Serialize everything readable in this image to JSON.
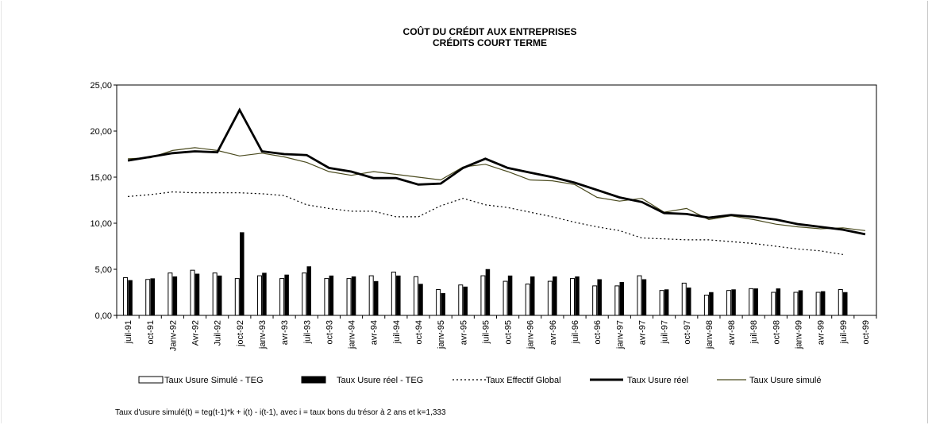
{
  "chart_data": {
    "type": "bar",
    "title": "COÛT DU CRÉDIT AUX ENTREPRISES",
    "subtitle": "CRÉDITS COURT TERME",
    "ylim": [
      0,
      25
    ],
    "yticks": [
      "0,00",
      "5,00",
      "10,00",
      "15,00",
      "20,00",
      "25,00"
    ],
    "yticks_values": [
      0,
      5,
      10,
      15,
      20,
      25
    ],
    "categories": [
      "juil-91",
      "oct-91",
      "Janv-92",
      "Avr-92",
      "Juil-92",
      "joct-92",
      "janv-93",
      "avr-93",
      "juil-93",
      "oct-93",
      "janv-94",
      "avr-94",
      "juil-94",
      "oct-94",
      "janv-95",
      "avr-95",
      "juil-95",
      "oct-95",
      "janv-96",
      "avr-96",
      "juil-96",
      "oct-96",
      "janv-97",
      "avr-97",
      "juil-97",
      "oct-97",
      "janv-98",
      "avr-98",
      "juil-98",
      "oct-98",
      "janv-99",
      "avr-99",
      "juil-99",
      "oct-99"
    ],
    "series": [
      {
        "name": "Taux Usure Simulé - TEG",
        "kind": "bar",
        "color": "#ffffff",
        "values": [
          4.1,
          3.9,
          4.6,
          4.9,
          4.6,
          4.0,
          4.3,
          4.0,
          4.6,
          4.0,
          4.0,
          4.3,
          4.7,
          4.2,
          2.8,
          3.3,
          4.3,
          3.7,
          3.4,
          3.7,
          4.0,
          3.2,
          3.2,
          4.3,
          2.7,
          3.5,
          2.2,
          2.7,
          2.9,
          2.5,
          2.5,
          2.5,
          2.8,
          null
        ]
      },
      {
        "name": "Taux Usure réel - TEG",
        "kind": "bar",
        "color": "#000000",
        "values": [
          3.8,
          4.0,
          4.2,
          4.5,
          4.3,
          9.0,
          4.6,
          4.4,
          5.3,
          4.3,
          4.2,
          3.7,
          4.3,
          3.4,
          2.4,
          3.1,
          5.0,
          4.3,
          4.2,
          4.2,
          4.2,
          3.9,
          3.6,
          3.9,
          2.8,
          3.0,
          2.5,
          2.8,
          2.9,
          2.9,
          2.7,
          2.6,
          2.5,
          null
        ]
      },
      {
        "name": "Taux Effectif Global",
        "kind": "line",
        "color": "#000000",
        "dash": "dotted",
        "values": [
          12.9,
          13.1,
          13.4,
          13.3,
          13.3,
          13.3,
          13.2,
          13.0,
          12.0,
          11.6,
          11.3,
          11.3,
          10.7,
          10.7,
          11.9,
          12.7,
          12.0,
          11.7,
          11.2,
          10.7,
          10.1,
          9.6,
          9.2,
          8.4,
          8.3,
          8.2,
          8.2,
          8.0,
          7.8,
          7.5,
          7.2,
          7.0,
          6.6,
          null
        ]
      },
      {
        "name": "Taux Usure réel",
        "kind": "line",
        "color": "#000000",
        "values": [
          16.8,
          17.2,
          17.6,
          17.8,
          17.7,
          22.3,
          17.8,
          17.5,
          17.4,
          16.0,
          15.6,
          14.9,
          14.9,
          14.2,
          14.3,
          16.0,
          17.0,
          16.0,
          15.5,
          15.0,
          14.4,
          13.6,
          12.8,
          12.3,
          11.1,
          11.0,
          10.6,
          10.9,
          10.7,
          10.4,
          9.9,
          9.6,
          9.3,
          8.8
        ]
      },
      {
        "name": "Taux Usure simulé",
        "kind": "line",
        "color": "#4a4a1e",
        "values": [
          17.0,
          17.1,
          17.9,
          18.2,
          17.9,
          17.3,
          17.6,
          17.2,
          16.6,
          15.6,
          15.2,
          15.6,
          15.3,
          15.0,
          14.7,
          16.1,
          16.4,
          15.6,
          14.7,
          14.6,
          14.2,
          12.8,
          12.4,
          12.7,
          11.2,
          11.6,
          10.4,
          10.8,
          10.4,
          9.9,
          9.6,
          9.4,
          9.5,
          9.2
        ]
      }
    ]
  },
  "legend": [
    {
      "label": "Taux Usure Simulé - TEG"
    },
    {
      "label": "Taux Usure réel - TEG"
    },
    {
      "label": "Taux Effectif Global"
    },
    {
      "label": "Taux Usure réel"
    },
    {
      "label": "Taux Usure simulé"
    }
  ],
  "formula": "Taux d'usure simulé(t)  = teg(t-1)*k + i(t) - i(t-1), avec i = taux bons du trésor à 2 ans et k=1,333"
}
